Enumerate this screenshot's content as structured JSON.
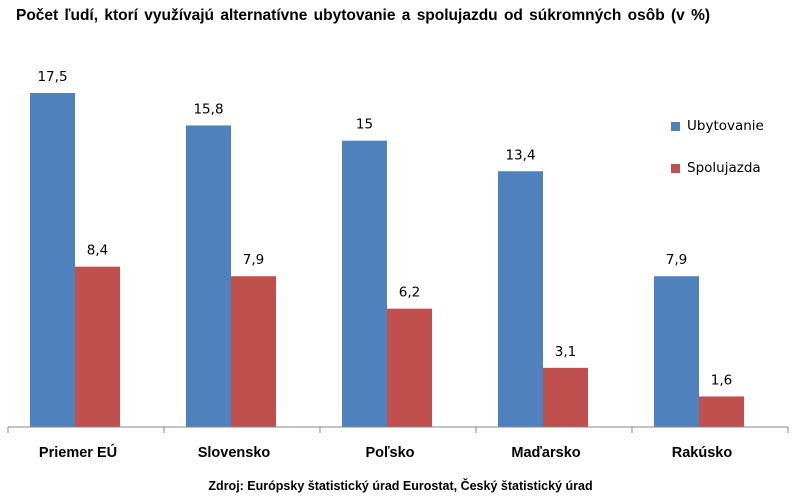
{
  "title": "Počet ľudí, ktorí využívajú alternatívne ubytovanie  a spolujazdu od súkromných osôb (v %)",
  "source": "Zdroj: Európsky štatistický úrad Eurostat, Český štatistický úrad",
  "colors": {
    "series_1": "#4F81BD",
    "series_2": "#C0504D"
  },
  "chart_data": {
    "type": "bar",
    "categories": [
      "Priemer EÚ",
      "Slovensko",
      "Poľsko",
      "Maďarsko",
      "Rakúsko"
    ],
    "series": [
      {
        "name": "Ubytovanie",
        "values": [
          17.5,
          15.8,
          15,
          13.4,
          7.9
        ],
        "labels": [
          "17,5",
          "15,8",
          "15",
          "13,4",
          "7,9"
        ]
      },
      {
        "name": "Spolujazda",
        "values": [
          8.4,
          7.9,
          6.2,
          3.1,
          1.6
        ],
        "labels": [
          "8,4",
          "7,9",
          "6,2",
          "3,1",
          "1,6"
        ]
      }
    ],
    "ylim": [
      0,
      17.5
    ],
    "grid": false,
    "legend": "right"
  }
}
